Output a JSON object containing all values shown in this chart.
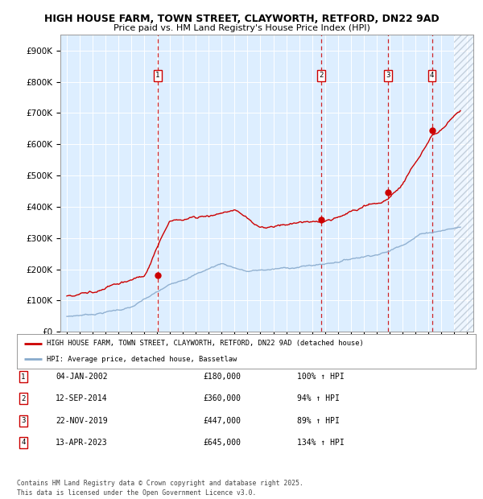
{
  "title_line1": "HIGH HOUSE FARM, TOWN STREET, CLAYWORTH, RETFORD, DN22 9AD",
  "title_line2": "Price paid vs. HM Land Registry's House Price Index (HPI)",
  "bg_color": "#ddeeff",
  "red_line_color": "#cc0000",
  "blue_line_color": "#88aacc",
  "ylim": [
    0,
    950000
  ],
  "yticks": [
    0,
    100000,
    200000,
    300000,
    400000,
    500000,
    600000,
    700000,
    800000,
    900000
  ],
  "xlim_start": 1994.5,
  "xlim_end": 2026.5,
  "sale_dates": [
    2002.04,
    2014.71,
    2019.9,
    2023.29
  ],
  "sale_prices": [
    180000,
    360000,
    447000,
    645000
  ],
  "sale_labels": [
    "1",
    "2",
    "3",
    "4"
  ],
  "legend_red": "HIGH HOUSE FARM, TOWN STREET, CLAYWORTH, RETFORD, DN22 9AD (detached house)",
  "legend_blue": "HPI: Average price, detached house, Bassetlaw",
  "table_entries": [
    {
      "num": "1",
      "date": "04-JAN-2002",
      "price": "£180,000",
      "hpi": "100% ↑ HPI"
    },
    {
      "num": "2",
      "date": "12-SEP-2014",
      "price": "£360,000",
      "hpi": "94% ↑ HPI"
    },
    {
      "num": "3",
      "date": "22-NOV-2019",
      "price": "£447,000",
      "hpi": "89% ↑ HPI"
    },
    {
      "num": "4",
      "date": "13-APR-2023",
      "price": "£645,000",
      "hpi": "134% ↑ HPI"
    }
  ],
  "footer": "Contains HM Land Registry data © Crown copyright and database right 2025.\nThis data is licensed under the Open Government Licence v3.0."
}
